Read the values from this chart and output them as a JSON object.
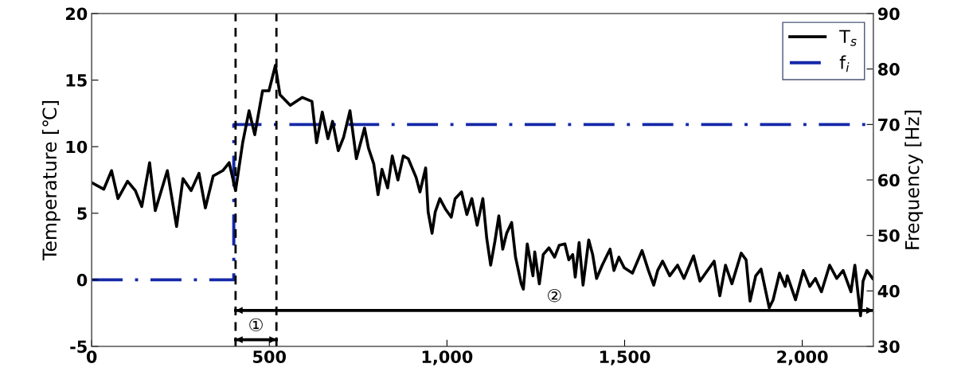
{
  "chart_data": {
    "type": "line",
    "xlabel": null,
    "ylabel": "Temperature [℃]",
    "y2label": "Frequency [Hz]",
    "xlim": [
      0,
      2200
    ],
    "xticks": [
      0,
      500,
      {
        "value": 1000,
        "label": "1,000"
      },
      {
        "value": 1500,
        "label": "1,500"
      },
      {
        "value": 2000,
        "label": "2,000"
      }
    ],
    "ylim": [
      -5,
      20
    ],
    "yticks": [
      -5,
      0,
      5,
      10,
      15,
      20
    ],
    "y2lim": [
      30,
      90
    ],
    "y2ticks": [
      30,
      40,
      50,
      60,
      70,
      80,
      90
    ],
    "grid": false,
    "legend": "top right",
    "series": [
      {
        "name": "T$_{s}$",
        "color": "#000000",
        "line_style": "solid",
        "x": [
          0,
          34,
          56,
          74,
          101,
          123,
          141,
          163,
          179,
          213,
          239,
          257,
          280,
          302,
          320,
          342,
          369,
          387,
          405,
          425,
          443,
          459,
          481,
          499,
          517,
          530,
          559,
          593,
          620,
          633,
          649,
          665,
          678,
          694,
          709,
          727,
          745,
          768,
          779,
          794,
          806,
          817,
          833,
          846,
          862,
          877,
          891,
          913,
          924,
          940,
          947,
          958,
          967,
          980,
          996,
          1012,
          1023,
          1041,
          1056,
          1070,
          1085,
          1101,
          1112,
          1123,
          1135,
          1146,
          1157,
          1168,
          1182,
          1193,
          1209,
          1215,
          1226,
          1242,
          1247,
          1260,
          1271,
          1287,
          1303,
          1316,
          1332,
          1343,
          1354,
          1361,
          1372,
          1383,
          1399,
          1410,
          1421,
          1437,
          1459,
          1470,
          1484,
          1499,
          1522,
          1549,
          1567,
          1582,
          1593,
          1607,
          1627,
          1649,
          1667,
          1694,
          1712,
          1728,
          1752,
          1768,
          1784,
          1802,
          1828,
          1842,
          1853,
          1869,
          1884,
          1907,
          1918,
          1936,
          1952,
          1958,
          1981,
          2003,
          2021,
          2037,
          2054,
          2077,
          2097,
          2115,
          2137,
          2148,
          2164,
          2171,
          2182,
          2198
        ],
        "values": [
          7.3,
          6.8,
          8.2,
          6.1,
          7.4,
          6.7,
          5.5,
          8.8,
          5.2,
          8.2,
          4.0,
          7.6,
          6.7,
          8.0,
          5.4,
          7.8,
          8.2,
          8.8,
          6.7,
          10.3,
          12.7,
          10.9,
          14.2,
          14.2,
          16.1,
          13.9,
          13.1,
          13.7,
          13.4,
          10.3,
          12.6,
          10.6,
          11.9,
          9.7,
          10.7,
          12.7,
          9.1,
          11.4,
          9.9,
          8.7,
          6.4,
          8.3,
          6.9,
          9.3,
          7.5,
          9.3,
          9.1,
          7.7,
          6.6,
          8.4,
          5.1,
          3.5,
          5.1,
          6.1,
          5.3,
          4.7,
          6.1,
          6.6,
          4.9,
          6.1,
          4.1,
          6.1,
          3.1,
          1.1,
          2.9,
          4.8,
          2.3,
          3.5,
          4.3,
          1.7,
          -0.3,
          -0.7,
          2.7,
          0.3,
          2.1,
          -0.3,
          1.9,
          2.4,
          1.7,
          2.6,
          2.7,
          1.5,
          1.9,
          0.2,
          2.8,
          -0.4,
          3.0,
          1.9,
          0.1,
          1.1,
          2.3,
          0.7,
          1.7,
          0.9,
          0.5,
          2.2,
          0.7,
          -0.4,
          0.7,
          1.4,
          0.3,
          1.1,
          0.1,
          1.8,
          -0.1,
          0.5,
          1.4,
          -1.2,
          1.1,
          -0.3,
          2.0,
          1.5,
          -1.6,
          0.3,
          0.8,
          -2.1,
          -1.5,
          0.5,
          -0.5,
          0.3,
          -1.5,
          0.7,
          -0.5,
          0.1,
          -0.9,
          1.1,
          0.1,
          0.7,
          -0.9,
          1.1,
          -2.7,
          -0.1,
          0.7,
          0.1
        ]
      },
      {
        "name": "f$_{i}$",
        "color": "#1428a8",
        "line_style": "dashdot",
        "axis": "y2",
        "x": [
          0,
          400,
          400,
          2200
        ],
        "values": [
          42,
          42,
          70,
          70
        ]
      },
      {
        "color": "#000000",
        "line_style": "solid",
        "x": [
          405,
          520
        ],
        "values": [
          -4.5,
          -4.5
        ]
      },
      {
        "color": "#000000",
        "line_style": "solid",
        "x": [
          405,
          2200
        ],
        "values": [
          -2.3,
          -2.3
        ]
      }
    ],
    "ref_lines": [
      {
        "axis": "x",
        "value": 405,
        "color": "#000000",
        "line_style": "dashed"
      },
      {
        "axis": "x",
        "value": 520,
        "color": "#000000",
        "line_style": "dashed"
      }
    ],
    "annotations": [
      "①",
      "②"
    ]
  }
}
